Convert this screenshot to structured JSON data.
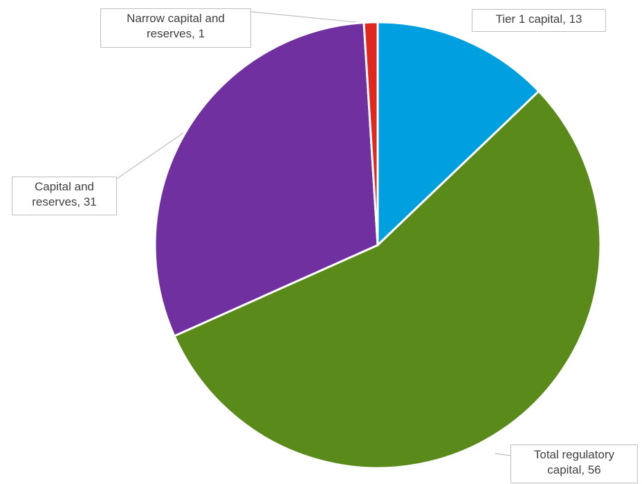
{
  "chart_data": {
    "type": "pie",
    "title": "",
    "slices": [
      {
        "label": "Tier 1 capital",
        "value": 13,
        "color": "#009fe0"
      },
      {
        "label": "Total regulatory capital",
        "value": 56,
        "color": "#5a8a1a"
      },
      {
        "label": "Capital and reserves",
        "value": 31,
        "color": "#7030a0"
      },
      {
        "label": "Narrow capital and reserves",
        "value": 1,
        "color": "#e0281e"
      }
    ],
    "data_labels": [
      {
        "text": "Tier 1 capital, 13"
      },
      {
        "text": "Total regulatory capital, 56"
      },
      {
        "text": "Capital and reserves, 31"
      },
      {
        "text": "Narrow capital and reserves, 1"
      }
    ],
    "legend": "none"
  }
}
